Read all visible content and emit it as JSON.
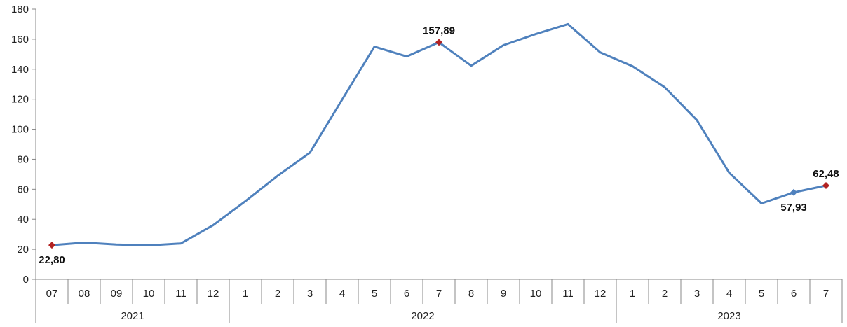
{
  "chart_data": {
    "type": "line",
    "title": "",
    "xlabel": "",
    "ylabel": "",
    "ylim": [
      0,
      180
    ],
    "y_ticks": [
      "0",
      "20",
      "40",
      "60",
      "80",
      "100",
      "120",
      "140",
      "160",
      "180"
    ],
    "grid": false,
    "legend": "none",
    "categories": [
      "07",
      "08",
      "09",
      "10",
      "11",
      "12",
      "1",
      "2",
      "3",
      "4",
      "5",
      "6",
      "7",
      "8",
      "9",
      "10",
      "11",
      "12",
      "1",
      "2",
      "3",
      "4",
      "5",
      "6",
      "7"
    ],
    "groups": [
      {
        "label": "2021",
        "count": 6
      },
      {
        "label": "2022",
        "count": 12
      },
      {
        "label": "2023",
        "count": 7
      }
    ],
    "series": [
      {
        "values": [
          22.8,
          24.5,
          23.2,
          22.6,
          23.9,
          36.1,
          52.1,
          69.0,
          84.4,
          119.8,
          155.0,
          148.5,
          157.89,
          142.3,
          156.0,
          163.4,
          170.0,
          151.2,
          142.0,
          128.0,
          106.0,
          71.0,
          50.6,
          57.93,
          62.48
        ],
        "color": "#4f81bd"
      }
    ],
    "annotations": [
      {
        "index": 0,
        "text": "22,80",
        "marker_color": "#b22222",
        "position": "below"
      },
      {
        "index": 12,
        "text": "157,89",
        "marker_color": "#b22222",
        "position": "above"
      },
      {
        "index": 23,
        "text": "57,93",
        "marker_color": "#4f81bd",
        "position": "below"
      },
      {
        "index": 24,
        "text": "62,48",
        "marker_color": "#b22222",
        "position": "above"
      }
    ],
    "axis_color": "#888888"
  }
}
